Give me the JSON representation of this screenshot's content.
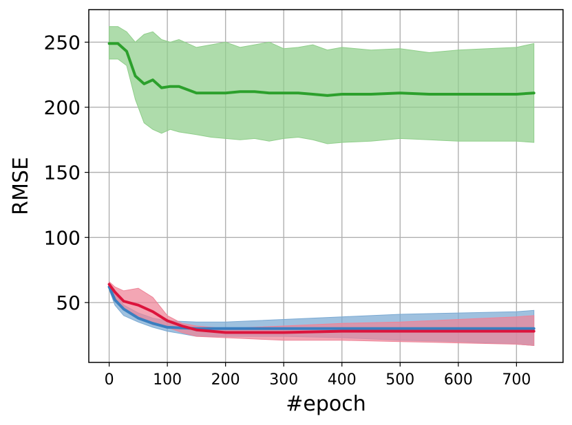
{
  "chart_data": {
    "type": "line",
    "title": "",
    "xlabel": "#epoch",
    "ylabel": "RMSE",
    "xlim": [
      -35,
      780
    ],
    "ylim": [
      4,
      275
    ],
    "x_ticks": [
      0,
      100,
      200,
      300,
      400,
      500,
      600,
      700
    ],
    "y_ticks": [
      50,
      100,
      150,
      200,
      250
    ],
    "grid": true,
    "legend": "none",
    "series": [
      {
        "color": "#2ca02c",
        "band_color": "#8fce8a",
        "x": [
          0,
          15,
          30,
          45,
          60,
          75,
          90,
          105,
          120,
          150,
          175,
          200,
          225,
          250,
          275,
          300,
          325,
          350,
          375,
          400,
          450,
          500,
          550,
          600,
          650,
          700,
          730
        ],
        "mean": [
          249,
          249,
          243,
          224,
          218,
          221,
          215,
          216,
          216,
          211,
          211,
          211,
          212,
          212,
          211,
          211,
          211,
          210,
          209,
          210,
          210,
          211,
          210,
          210,
          210,
          210,
          211
        ],
        "upper": [
          262,
          262,
          258,
          250,
          256,
          258,
          252,
          250,
          252,
          246,
          248,
          250,
          246,
          248,
          250,
          245,
          246,
          248,
          244,
          246,
          244,
          245,
          242,
          244,
          245,
          246,
          249
        ],
        "lower": [
          237,
          237,
          232,
          206,
          188,
          183,
          180,
          183,
          181,
          179,
          177,
          176,
          175,
          176,
          174,
          176,
          177,
          175,
          172,
          173,
          174,
          176,
          175,
          174,
          174,
          174,
          173
        ]
      },
      {
        "color": "#3a7ebf",
        "band_color": "#7aa9d2",
        "x": [
          0,
          10,
          25,
          50,
          75,
          100,
          150,
          200,
          300,
          400,
          500,
          600,
          700,
          730
        ],
        "mean": [
          62,
          52,
          45,
          38,
          34,
          31,
          30,
          30,
          30,
          30,
          30,
          30,
          30,
          30
        ],
        "upper": [
          63,
          57,
          48,
          42,
          38,
          36,
          35,
          35,
          37,
          39,
          41,
          42,
          43,
          44
        ],
        "lower": [
          60,
          48,
          40,
          35,
          31,
          28,
          24,
          24,
          24,
          23,
          21,
          20,
          18,
          17
        ]
      },
      {
        "color": "#dc143c",
        "band_color": "#ee8397",
        "x": [
          0,
          10,
          25,
          50,
          75,
          100,
          125,
          150,
          200,
          250,
          300,
          400,
          500,
          600,
          700,
          730
        ],
        "mean": [
          64,
          58,
          51,
          48,
          43,
          36,
          32,
          29,
          27,
          27,
          27,
          28,
          28,
          28,
          28,
          28
        ],
        "upper": [
          66,
          62,
          59,
          61,
          54,
          40,
          34,
          32,
          30,
          31,
          32,
          34,
          35,
          37,
          39,
          40
        ],
        "lower": [
          62,
          54,
          45,
          40,
          33,
          31,
          27,
          24,
          23,
          22,
          21,
          21,
          20,
          19,
          18,
          17
        ]
      }
    ]
  }
}
